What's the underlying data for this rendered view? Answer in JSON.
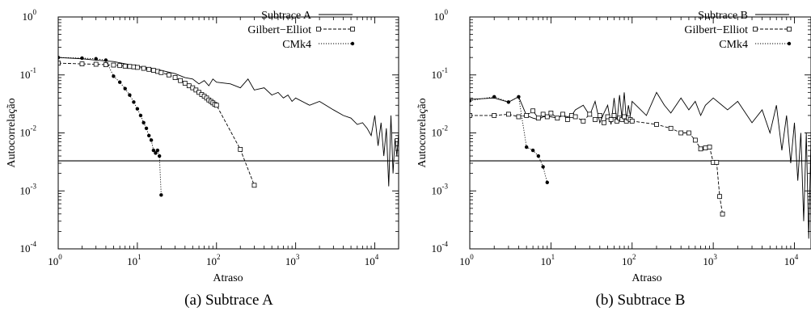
{
  "chart_data": [
    {
      "type": "line",
      "caption": "(a)  Subtrace A",
      "xlabel": "Atraso",
      "ylabel": "Autocorrelação",
      "xscale": "log",
      "yscale": "log",
      "xlim": [
        1,
        20000
      ],
      "ylim": [
        0.0001,
        1
      ],
      "xticks": [
        {
          "base": "10",
          "exp": "0"
        },
        {
          "base": "10",
          "exp": "1"
        },
        {
          "base": "10",
          "exp": "2"
        },
        {
          "base": "10",
          "exp": "3"
        },
        {
          "base": "10",
          "exp": "4"
        }
      ],
      "yticks": [
        {
          "base": "10",
          "exp": "-4"
        },
        {
          "base": "10",
          "exp": "-3"
        },
        {
          "base": "10",
          "exp": "-2"
        },
        {
          "base": "10",
          "exp": "-1"
        },
        {
          "base": "10",
          "exp": "0"
        }
      ],
      "legend_position": "top-right",
      "reference_line": 0.0033,
      "series": [
        {
          "name": "Subtrace A",
          "style": "solid",
          "marker": "none",
          "x": [
            1,
            2,
            3,
            5,
            8,
            10,
            15,
            20,
            30,
            40,
            50,
            60,
            70,
            80,
            90,
            100,
            150,
            200,
            250,
            300,
            400,
            500,
            600,
            700,
            800,
            900,
            1000,
            1500,
            2000,
            3000,
            4000,
            5000,
            6000,
            7000,
            8000,
            9000,
            10000,
            11000,
            12000,
            13000,
            14000,
            15000,
            16000,
            17000,
            18000,
            19000,
            20000
          ],
          "y": [
            0.2,
            0.19,
            0.18,
            0.17,
            0.15,
            0.14,
            0.13,
            0.12,
            0.105,
            0.09,
            0.085,
            0.07,
            0.08,
            0.065,
            0.085,
            0.075,
            0.07,
            0.06,
            0.085,
            0.055,
            0.06,
            0.045,
            0.05,
            0.04,
            0.045,
            0.035,
            0.04,
            0.03,
            0.035,
            0.025,
            0.02,
            0.018,
            0.014,
            0.015,
            0.012,
            0.009,
            0.02,
            0.006,
            0.015,
            0.004,
            0.012,
            0.0012,
            0.02,
            0.002,
            0.008,
            0.004,
            0.01
          ]
        },
        {
          "name": "Gilbert−Elliot",
          "style": "dashed",
          "marker": "square",
          "x": [
            1,
            2,
            3,
            4,
            5,
            6,
            7,
            8,
            9,
            10,
            12,
            14,
            16,
            18,
            20,
            25,
            30,
            35,
            40,
            45,
            50,
            55,
            60,
            65,
            70,
            75,
            80,
            85,
            90,
            95,
            100,
            200,
            300
          ],
          "y": [
            0.16,
            0.155,
            0.153,
            0.15,
            0.148,
            0.145,
            0.142,
            0.14,
            0.138,
            0.135,
            0.13,
            0.125,
            0.12,
            0.115,
            0.11,
            0.1,
            0.09,
            0.08,
            0.072,
            0.065,
            0.06,
            0.055,
            0.05,
            0.046,
            0.043,
            0.04,
            0.037,
            0.035,
            0.033,
            0.031,
            0.03,
            0.0052,
            0.00125
          ]
        },
        {
          "name": "CMk4",
          "style": "dotted",
          "marker": "circle",
          "x": [
            1,
            2,
            3,
            4,
            5,
            6,
            7,
            8,
            9,
            10,
            11,
            12,
            13,
            14,
            15,
            16,
            17,
            18,
            19,
            20
          ],
          "y": [
            0.2,
            0.195,
            0.19,
            0.18,
            0.095,
            0.075,
            0.058,
            0.045,
            0.034,
            0.026,
            0.02,
            0.015,
            0.012,
            0.009,
            0.0075,
            0.005,
            0.0045,
            0.005,
            0.004,
            0.00085
          ]
        }
      ]
    },
    {
      "type": "line",
      "caption": "(b)  Subtrace B",
      "xlabel": "Atraso",
      "ylabel": "Autocorrelação",
      "xscale": "log",
      "yscale": "log",
      "xlim": [
        1,
        16000
      ],
      "ylim": [
        0.0001,
        1
      ],
      "xticks": [
        {
          "base": "10",
          "exp": "0"
        },
        {
          "base": "10",
          "exp": "1"
        },
        {
          "base": "10",
          "exp": "2"
        },
        {
          "base": "10",
          "exp": "3"
        },
        {
          "base": "10",
          "exp": "4"
        }
      ],
      "yticks": [
        {
          "base": "10",
          "exp": "-4"
        },
        {
          "base": "10",
          "exp": "-3"
        },
        {
          "base": "10",
          "exp": "-2"
        },
        {
          "base": "10",
          "exp": "-1"
        },
        {
          "base": "10",
          "exp": "0"
        }
      ],
      "legend_position": "top-right",
      "reference_line": 0.0033,
      "series": [
        {
          "name": "Subtrace B",
          "style": "solid",
          "marker": "none",
          "x": [
            1,
            2,
            3,
            4,
            5,
            6,
            7,
            8,
            10,
            12,
            14,
            16,
            18,
            20,
            25,
            30,
            35,
            40,
            45,
            50,
            55,
            60,
            65,
            70,
            75,
            80,
            85,
            90,
            95,
            100,
            150,
            200,
            250,
            300,
            400,
            500,
            600,
            700,
            800,
            1000,
            1500,
            2000,
            3000,
            4000,
            5000,
            6000,
            7000,
            8000,
            9000,
            10000,
            11000,
            12000,
            13000,
            14000,
            15000,
            16000
          ],
          "y": [
            0.038,
            0.04,
            0.034,
            0.042,
            0.02,
            0.018,
            0.017,
            0.019,
            0.019,
            0.018,
            0.02,
            0.019,
            0.02,
            0.025,
            0.03,
            0.02,
            0.035,
            0.015,
            0.022,
            0.03,
            0.014,
            0.04,
            0.015,
            0.045,
            0.018,
            0.05,
            0.016,
            0.03,
            0.02,
            0.035,
            0.02,
            0.05,
            0.03,
            0.022,
            0.04,
            0.025,
            0.035,
            0.02,
            0.03,
            0.04,
            0.025,
            0.035,
            0.015,
            0.025,
            0.01,
            0.03,
            0.005,
            0.02,
            0.003,
            0.015,
            0.0015,
            0.01,
            0.0003,
            0.01,
            0.00015,
            0.008
          ]
        },
        {
          "name": "Gilbert−Elliot",
          "style": "dashed",
          "marker": "square",
          "x": [
            1,
            2,
            3,
            4,
            5,
            6,
            7,
            8,
            9,
            10,
            12,
            14,
            16,
            18,
            20,
            25,
            30,
            35,
            40,
            45,
            50,
            55,
            60,
            65,
            70,
            75,
            80,
            85,
            90,
            95,
            100,
            200,
            300,
            400,
            500,
            600,
            700,
            800,
            900,
            1000,
            1100,
            1200,
            1300
          ],
          "y": [
            0.02,
            0.02,
            0.021,
            0.019,
            0.02,
            0.024,
            0.018,
            0.021,
            0.019,
            0.022,
            0.018,
            0.021,
            0.017,
            0.02,
            0.019,
            0.016,
            0.021,
            0.017,
            0.02,
            0.015,
            0.019,
            0.017,
            0.02,
            0.016,
            0.018,
            0.017,
            0.019,
            0.016,
            0.018,
            0.017,
            0.016,
            0.014,
            0.012,
            0.01,
            0.01,
            0.0075,
            0.0053,
            0.0055,
            0.0057,
            0.0031,
            0.0031,
            0.0008,
            0.0004
          ]
        },
        {
          "name": "CMk4",
          "style": "dotted",
          "marker": "circle",
          "x": [
            1,
            2,
            3,
            4,
            5,
            6,
            7,
            8,
            9
          ],
          "y": [
            0.036,
            0.042,
            0.034,
            0.042,
            0.0057,
            0.005,
            0.004,
            0.0026,
            0.0014
          ]
        }
      ]
    }
  ]
}
